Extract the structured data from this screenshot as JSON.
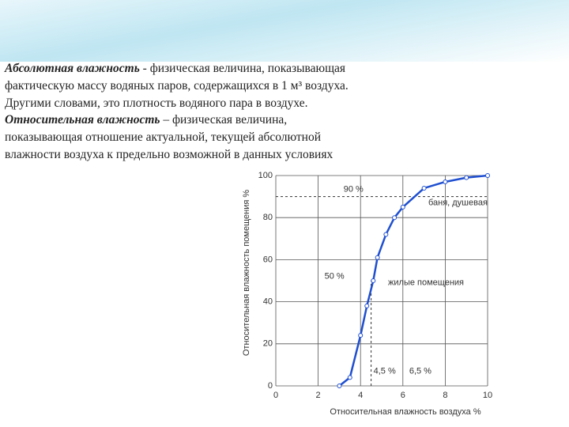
{
  "paragraphs": [
    {
      "term": "Абсолютная влажность",
      "lines": [
        " - физическая величина, показывающая",
        "фактическую массу водяных паров, содержащихся в 1 м³ воздуха.",
        "Другими словами, это плотность водяного пара в воздухе."
      ]
    },
    {
      "term": "Относительная влажность",
      "lines": [
        " – физическая величина,",
        "показывающая отношение актуальной, текущей абсолютной",
        "влажности воздуха к предельно возможной в данных условиях"
      ]
    }
  ],
  "chart_data": {
    "type": "line",
    "x_label": "Относительная влажность воздуха %",
    "y_label": "Относительная влажность помещения %",
    "x": [
      3,
      3.5,
      4,
      4.3,
      4.6,
      4.8,
      5.2,
      5.6,
      6,
      7,
      8,
      9,
      10
    ],
    "values": [
      0,
      4,
      24,
      38,
      50,
      61,
      72,
      80,
      85,
      94,
      97,
      99,
      100
    ],
    "color": "#1f4fd0",
    "xlim": [
      0,
      10
    ],
    "ylim": [
      0,
      100
    ],
    "xticks": [
      0,
      2,
      4,
      6,
      8,
      10
    ],
    "yticks": [
      0,
      20,
      40,
      60,
      80,
      100
    ],
    "grid": true,
    "hlines": [
      {
        "value": 90,
        "label": "90 %"
      }
    ],
    "vlines": [
      {
        "value": 4.5,
        "label": "4,5 %"
      }
    ],
    "annotations": [
      "50 %",
      "6,5 %",
      "баня, душевая",
      "жилые помещения"
    ]
  }
}
